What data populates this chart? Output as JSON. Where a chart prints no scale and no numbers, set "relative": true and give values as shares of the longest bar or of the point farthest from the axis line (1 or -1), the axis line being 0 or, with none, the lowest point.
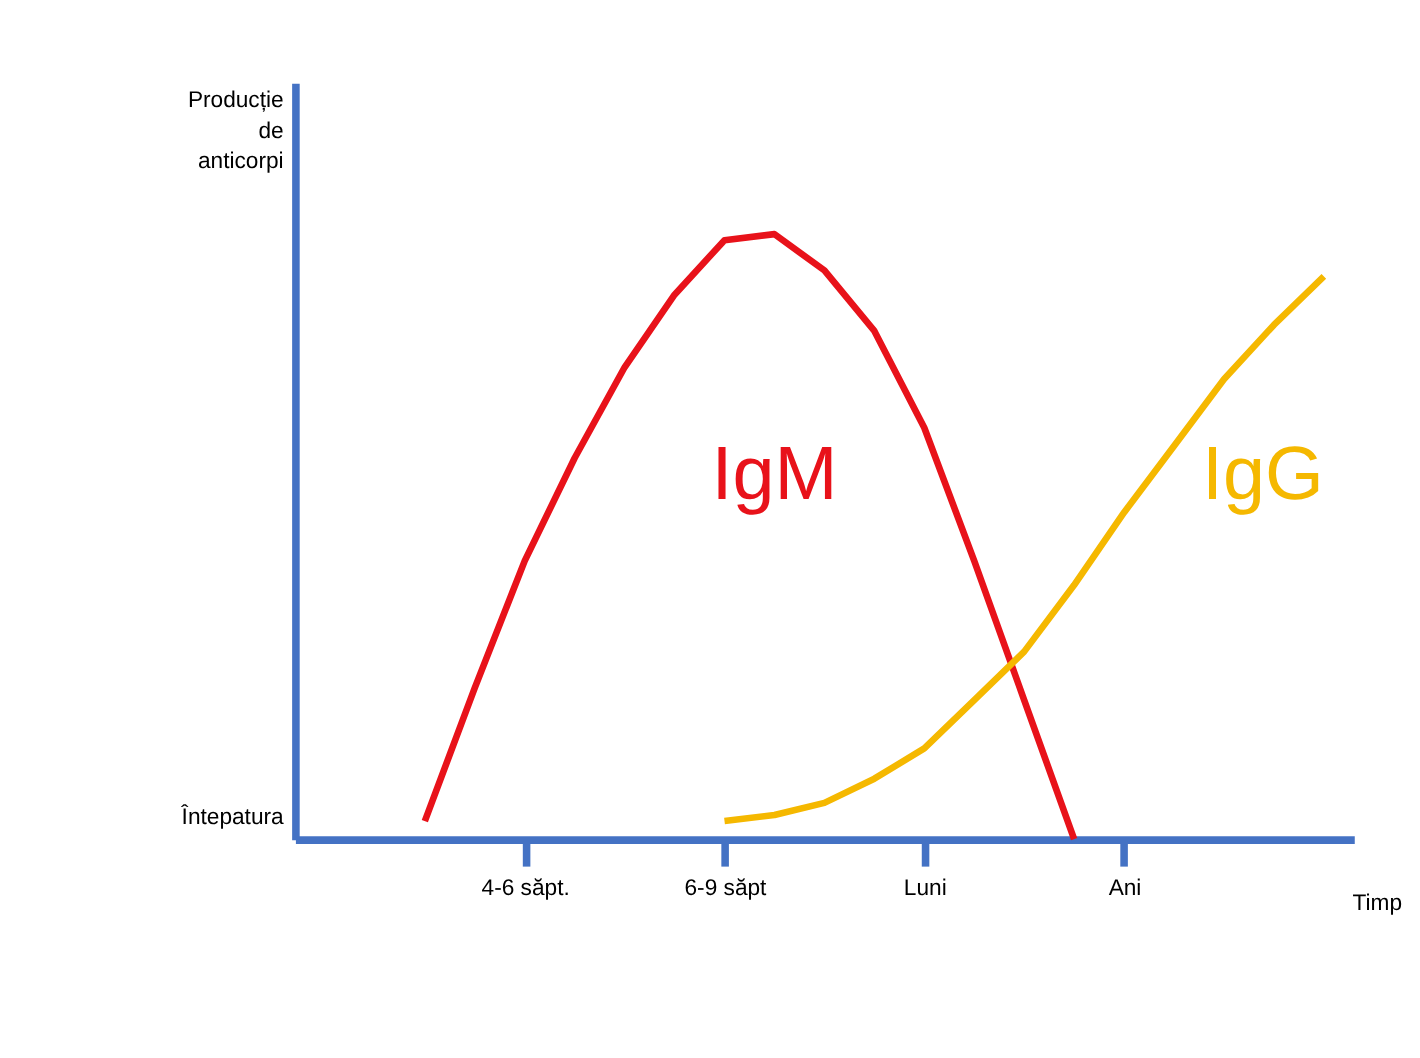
{
  "chart_data": {
    "type": "line",
    "relative": true,
    "xlabel": "Timp",
    "annotations": [
      "Producție de anticorpi",
      "Întepatura"
    ],
    "categories": [
      null,
      null,
      null,
      "4-6 săpt.",
      null,
      null,
      null,
      "6-9 săpt",
      null,
      null,
      null,
      "Luni",
      null,
      null,
      null,
      "Ani",
      null,
      null,
      null,
      null
    ],
    "series": [
      {
        "name": "IgM",
        "color": "#e8121a",
        "values": [
          null,
          0.03,
          0.25,
          0.46,
          0.63,
          0.78,
          0.9,
          0.99,
          1,
          0.94,
          0.84,
          0.68,
          0.46,
          0.23,
          0,
          null,
          null,
          null,
          null,
          null
        ]
      },
      {
        "name": "IgG",
        "color": "#f5b800",
        "values": [
          null,
          null,
          null,
          null,
          null,
          null,
          null,
          0.03,
          0.04,
          0.06,
          0.1,
          0.15,
          0.23,
          0.31,
          0.42,
          0.54,
          0.65,
          0.76,
          0.85,
          0.93
        ]
      }
    ],
    "grid": false,
    "legend": false,
    "marker": "none",
    "line_style": "solid"
  }
}
